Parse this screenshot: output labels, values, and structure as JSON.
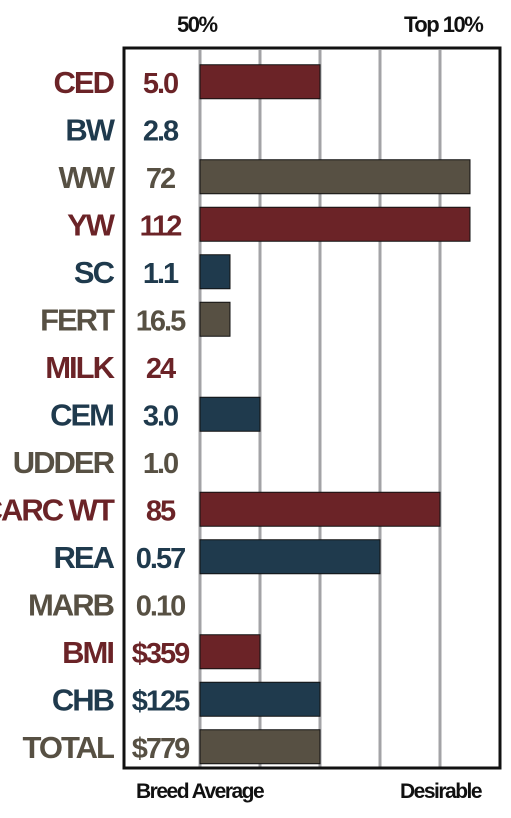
{
  "header": {
    "left_label": "50%",
    "right_label": "Top 10%"
  },
  "footer": {
    "left_label": "Breed Average",
    "right_label": "Desirable"
  },
  "colors": {
    "red": "#6b2327",
    "blue": "#1f3a4d",
    "brown": "#575043",
    "grid": "#a3a3a6",
    "frame": "#111111"
  },
  "chart_data": {
    "type": "bar",
    "orientation": "horizontal",
    "xlim": [
      0,
      9
    ],
    "x_scale_note_levels": [
      "Breed Average",
      "50%",
      "Top 10%",
      "Desirable"
    ],
    "grid": true,
    "rows": [
      {
        "trait": "CED",
        "value": "5.0",
        "bar": 4.0,
        "color": "red"
      },
      {
        "trait": "BW",
        "value": "2.8",
        "bar": 0,
        "color": "blue"
      },
      {
        "trait": "WW",
        "value": "72",
        "bar": 9.0,
        "color": "brown"
      },
      {
        "trait": "YW",
        "value": "112",
        "bar": 9.0,
        "color": "red"
      },
      {
        "trait": "SC",
        "value": "1.1",
        "bar": 1.0,
        "color": "blue"
      },
      {
        "trait": "FERT",
        "value": "16.5",
        "bar": 1.0,
        "color": "brown"
      },
      {
        "trait": "MILK",
        "value": "24",
        "bar": 0,
        "color": "red"
      },
      {
        "trait": "CEM",
        "value": "3.0",
        "bar": 2.0,
        "color": "blue"
      },
      {
        "trait": "UDDER",
        "value": "1.0",
        "bar": 0,
        "color": "brown"
      },
      {
        "trait": "CARC WT",
        "value": "85",
        "bar": 8.0,
        "color": "red"
      },
      {
        "trait": "REA",
        "value": "0.57",
        "bar": 6.0,
        "color": "blue"
      },
      {
        "trait": "MARB",
        "value": "0.10",
        "bar": 0,
        "color": "brown"
      },
      {
        "trait": "BMI",
        "value": "$359",
        "bar": 2.0,
        "color": "red"
      },
      {
        "trait": "CHB",
        "value": "$125",
        "bar": 4.0,
        "color": "blue"
      },
      {
        "trait": "TOTAL",
        "value": "$779",
        "bar": 4.0,
        "color": "brown"
      }
    ]
  }
}
